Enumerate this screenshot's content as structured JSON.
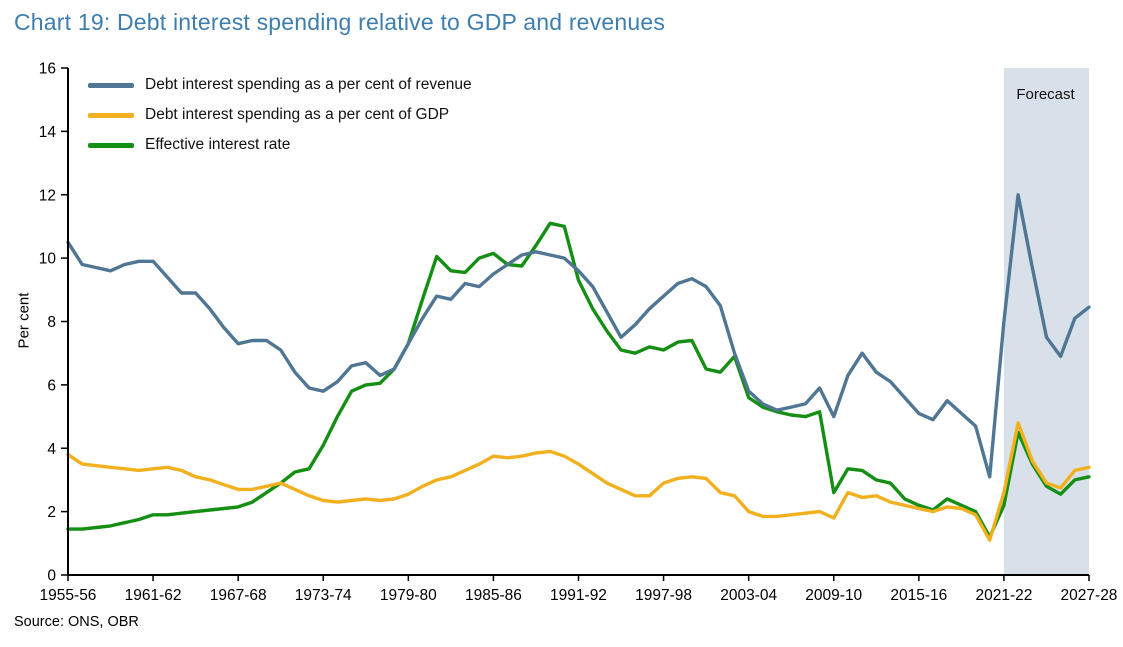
{
  "source": "Source: ONS, OBR",
  "colors": {
    "title": "#3e7eae",
    "forecast_band": "#d8e0ea",
    "axis": "#000000",
    "text": "#111111"
  },
  "chart_data": {
    "type": "line",
    "title": "Chart 19: Debt interest spending relative to GDP and revenues",
    "xlabel": "",
    "ylabel": "Per cent",
    "ylim": [
      0,
      16
    ],
    "y_ticks": [
      0,
      2,
      4,
      6,
      8,
      10,
      12,
      14,
      16
    ],
    "grid": false,
    "legend_position": "top-left",
    "forecast_label": "Forecast",
    "forecast_start_year": "2021-22",
    "x_tick_labels": [
      "1955-56",
      "1961-62",
      "1967-68",
      "1973-74",
      "1979-80",
      "1985-86",
      "1991-92",
      "1997-98",
      "2003-04",
      "2009-10",
      "2015-16",
      "2021-22",
      "2027-28"
    ],
    "years": [
      "1955-56",
      "1956-57",
      "1957-58",
      "1958-59",
      "1959-60",
      "1960-61",
      "1961-62",
      "1962-63",
      "1963-64",
      "1964-65",
      "1965-66",
      "1966-67",
      "1967-68",
      "1968-69",
      "1969-70",
      "1970-71",
      "1971-72",
      "1972-73",
      "1973-74",
      "1974-75",
      "1975-76",
      "1976-77",
      "1977-78",
      "1978-79",
      "1979-80",
      "1980-81",
      "1981-82",
      "1982-83",
      "1983-84",
      "1984-85",
      "1985-86",
      "1986-87",
      "1987-88",
      "1988-89",
      "1989-90",
      "1990-91",
      "1991-92",
      "1992-93",
      "1993-94",
      "1994-95",
      "1995-96",
      "1996-97",
      "1997-98",
      "1998-99",
      "1999-00",
      "2000-01",
      "2001-02",
      "2002-03",
      "2003-04",
      "2004-05",
      "2005-06",
      "2006-07",
      "2007-08",
      "2008-09",
      "2009-10",
      "2010-11",
      "2011-12",
      "2012-13",
      "2013-14",
      "2014-15",
      "2015-16",
      "2016-17",
      "2017-18",
      "2018-19",
      "2019-20",
      "2020-21",
      "2021-22",
      "2022-23",
      "2023-24",
      "2024-25",
      "2025-26",
      "2026-27",
      "2027-28"
    ],
    "series": [
      {
        "name": "Debt interest spending as a per cent of revenue",
        "color": "#4f7693",
        "values": [
          10.5,
          9.8,
          9.7,
          9.6,
          9.8,
          9.9,
          9.9,
          9.4,
          8.9,
          8.9,
          8.4,
          7.8,
          7.3,
          7.4,
          7.4,
          7.1,
          6.4,
          5.9,
          5.8,
          6.1,
          6.6,
          6.7,
          6.3,
          6.5,
          7.3,
          8.1,
          8.8,
          8.7,
          9.2,
          9.1,
          9.5,
          9.8,
          10.1,
          10.2,
          10.1,
          10.0,
          9.6,
          9.1,
          8.3,
          7.5,
          7.9,
          8.4,
          8.8,
          9.2,
          9.35,
          9.1,
          8.5,
          7.0,
          5.8,
          5.4,
          5.2,
          5.3,
          5.4,
          5.9,
          5.0,
          6.3,
          7.0,
          6.4,
          6.1,
          5.6,
          5.1,
          4.9,
          5.5,
          5.1,
          4.7,
          3.1,
          8.0,
          12.0,
          9.7,
          7.5,
          6.9,
          8.1,
          8.45
        ]
      },
      {
        "name": "Debt interest spending as a per cent of GDP",
        "color": "#f2b01e",
        "values": [
          3.8,
          3.5,
          3.45,
          3.4,
          3.35,
          3.3,
          3.35,
          3.4,
          3.3,
          3.1,
          3.0,
          2.85,
          2.7,
          2.7,
          2.8,
          2.9,
          2.7,
          2.5,
          2.35,
          2.3,
          2.35,
          2.4,
          2.35,
          2.4,
          2.55,
          2.8,
          3.0,
          3.1,
          3.3,
          3.5,
          3.75,
          3.7,
          3.75,
          3.85,
          3.9,
          3.75,
          3.5,
          3.2,
          2.9,
          2.7,
          2.5,
          2.5,
          2.9,
          3.05,
          3.1,
          3.05,
          2.6,
          2.5,
          2.0,
          1.85,
          1.85,
          1.9,
          1.95,
          2.0,
          1.8,
          2.6,
          2.45,
          2.5,
          2.3,
          2.2,
          2.1,
          2.0,
          2.15,
          2.1,
          1.9,
          1.1,
          2.6,
          4.8,
          3.6,
          2.9,
          2.75,
          3.3,
          3.4
        ]
      },
      {
        "name": "Effective interest rate",
        "color": "#148f14",
        "values": [
          1.45,
          1.45,
          1.5,
          1.55,
          1.65,
          1.75,
          1.9,
          1.9,
          1.95,
          2.0,
          2.05,
          2.1,
          2.15,
          2.3,
          2.6,
          2.9,
          3.25,
          3.35,
          4.1,
          5.0,
          5.8,
          6.0,
          6.05,
          6.5,
          7.3,
          8.7,
          10.05,
          9.6,
          9.55,
          10.0,
          10.15,
          9.8,
          9.75,
          10.4,
          11.1,
          11.0,
          9.3,
          8.4,
          7.7,
          7.1,
          7.0,
          7.2,
          7.1,
          7.35,
          7.4,
          6.5,
          6.4,
          6.9,
          5.6,
          5.3,
          5.15,
          5.05,
          5.0,
          5.15,
          2.6,
          3.35,
          3.3,
          3.0,
          2.9,
          2.4,
          2.2,
          2.05,
          2.4,
          2.2,
          2.0,
          1.2,
          2.2,
          4.5,
          3.5,
          2.8,
          2.55,
          3.0,
          3.1
        ]
      }
    ]
  }
}
